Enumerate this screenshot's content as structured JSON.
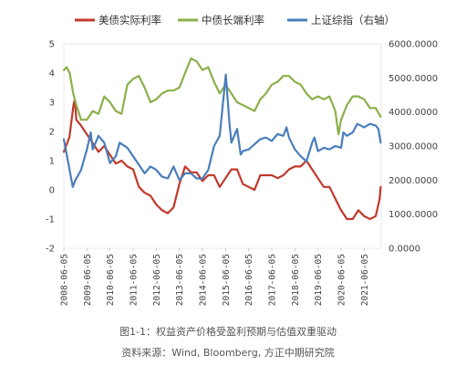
{
  "caption": {
    "title": "图1-1：权益资产价格受盈利预期与估值双重驱动",
    "source": "资料来源：Wind, Bloomberg, 方正中期研究院"
  },
  "chart_data": {
    "type": "line",
    "series": [
      {
        "name": "美债实际利率",
        "color": "#c0392b",
        "axis": "left",
        "values": [
          {
            "date": "2008-06-05",
            "v": 1.3
          },
          {
            "date": "2008-09-01",
            "v": 1.8
          },
          {
            "date": "2008-11-05",
            "v": 2.9
          },
          {
            "date": "2008-11-25",
            "v": 3.1
          },
          {
            "date": "2008-12-20",
            "v": 2.4
          },
          {
            "date": "2009-03-05",
            "v": 2.2
          },
          {
            "date": "2009-06-05",
            "v": 1.9
          },
          {
            "date": "2009-09-05",
            "v": 1.6
          },
          {
            "date": "2009-12-05",
            "v": 1.3
          },
          {
            "date": "2010-03-05",
            "v": 1.5
          },
          {
            "date": "2010-06-05",
            "v": 1.2
          },
          {
            "date": "2010-09-05",
            "v": 0.9
          },
          {
            "date": "2010-12-05",
            "v": 1.0
          },
          {
            "date": "2011-03-05",
            "v": 0.8
          },
          {
            "date": "2011-06-05",
            "v": 0.7
          },
          {
            "date": "2011-09-05",
            "v": 0.1
          },
          {
            "date": "2011-12-05",
            "v": -0.1
          },
          {
            "date": "2012-03-05",
            "v": -0.2
          },
          {
            "date": "2012-06-05",
            "v": -0.5
          },
          {
            "date": "2012-09-05",
            "v": -0.7
          },
          {
            "date": "2012-12-05",
            "v": -0.8
          },
          {
            "date": "2013-03-05",
            "v": -0.6
          },
          {
            "date": "2013-06-05",
            "v": 0.2
          },
          {
            "date": "2013-09-05",
            "v": 0.8
          },
          {
            "date": "2013-12-05",
            "v": 0.6
          },
          {
            "date": "2014-03-05",
            "v": 0.6
          },
          {
            "date": "2014-06-05",
            "v": 0.3
          },
          {
            "date": "2014-09-05",
            "v": 0.5
          },
          {
            "date": "2014-12-05",
            "v": 0.5
          },
          {
            "date": "2015-03-05",
            "v": 0.1
          },
          {
            "date": "2015-06-05",
            "v": 0.4
          },
          {
            "date": "2015-09-05",
            "v": 0.7
          },
          {
            "date": "2015-12-05",
            "v": 0.7
          },
          {
            "date": "2016-03-05",
            "v": 0.2
          },
          {
            "date": "2016-06-05",
            "v": 0.1
          },
          {
            "date": "2016-09-05",
            "v": 0.0
          },
          {
            "date": "2016-12-05",
            "v": 0.5
          },
          {
            "date": "2017-03-05",
            "v": 0.5
          },
          {
            "date": "2017-06-05",
            "v": 0.5
          },
          {
            "date": "2017-09-05",
            "v": 0.4
          },
          {
            "date": "2017-12-05",
            "v": 0.5
          },
          {
            "date": "2018-03-05",
            "v": 0.7
          },
          {
            "date": "2018-06-05",
            "v": 0.8
          },
          {
            "date": "2018-09-05",
            "v": 0.8
          },
          {
            "date": "2018-12-05",
            "v": 1.0
          },
          {
            "date": "2019-03-05",
            "v": 0.7
          },
          {
            "date": "2019-06-05",
            "v": 0.4
          },
          {
            "date": "2019-09-05",
            "v": 0.1
          },
          {
            "date": "2019-12-05",
            "v": 0.1
          },
          {
            "date": "2020-03-05",
            "v": -0.3
          },
          {
            "date": "2020-06-05",
            "v": -0.7
          },
          {
            "date": "2020-09-05",
            "v": -1.0
          },
          {
            "date": "2020-12-05",
            "v": -1.0
          },
          {
            "date": "2021-03-05",
            "v": -0.7
          },
          {
            "date": "2021-06-05",
            "v": -0.9
          },
          {
            "date": "2021-09-05",
            "v": -1.0
          },
          {
            "date": "2021-12-05",
            "v": -0.9
          },
          {
            "date": "2022-01-15",
            "v": -0.5
          },
          {
            "date": "2022-02-05",
            "v": -0.3
          },
          {
            "date": "2022-02-20",
            "v": 0.1
          }
        ]
      },
      {
        "name": "中债长端利率",
        "color": "#8ab04a",
        "axis": "left",
        "values": [
          {
            "date": "2008-06-05",
            "v": 4.1
          },
          {
            "date": "2008-07-20",
            "v": 4.2
          },
          {
            "date": "2008-09-05",
            "v": 4.0
          },
          {
            "date": "2008-11-01",
            "v": 3.3
          },
          {
            "date": "2008-12-20",
            "v": 2.9
          },
          {
            "date": "2009-03-05",
            "v": 2.4
          },
          {
            "date": "2009-06-05",
            "v": 2.4
          },
          {
            "date": "2009-09-05",
            "v": 2.7
          },
          {
            "date": "2009-12-05",
            "v": 2.6
          },
          {
            "date": "2010-03-05",
            "v": 3.2
          },
          {
            "date": "2010-06-05",
            "v": 3.0
          },
          {
            "date": "2010-09-05",
            "v": 2.7
          },
          {
            "date": "2010-12-05",
            "v": 2.6
          },
          {
            "date": "2011-03-05",
            "v": 3.6
          },
          {
            "date": "2011-06-05",
            "v": 3.8
          },
          {
            "date": "2011-09-05",
            "v": 3.9
          },
          {
            "date": "2011-12-05",
            "v": 3.5
          },
          {
            "date": "2012-03-05",
            "v": 3.0
          },
          {
            "date": "2012-06-05",
            "v": 3.1
          },
          {
            "date": "2012-09-05",
            "v": 3.3
          },
          {
            "date": "2012-12-05",
            "v": 3.4
          },
          {
            "date": "2013-03-05",
            "v": 3.4
          },
          {
            "date": "2013-06-05",
            "v": 3.5
          },
          {
            "date": "2013-09-05",
            "v": 4.0
          },
          {
            "date": "2013-12-05",
            "v": 4.5
          },
          {
            "date": "2014-03-05",
            "v": 4.4
          },
          {
            "date": "2014-06-05",
            "v": 4.1
          },
          {
            "date": "2014-09-05",
            "v": 4.2
          },
          {
            "date": "2014-12-05",
            "v": 3.7
          },
          {
            "date": "2015-03-05",
            "v": 3.3
          },
          {
            "date": "2015-06-05",
            "v": 3.6
          },
          {
            "date": "2015-09-05",
            "v": 3.3
          },
          {
            "date": "2015-12-05",
            "v": 3.0
          },
          {
            "date": "2016-03-05",
            "v": 2.9
          },
          {
            "date": "2016-06-05",
            "v": 2.8
          },
          {
            "date": "2016-09-05",
            "v": 2.7
          },
          {
            "date": "2016-12-05",
            "v": 3.1
          },
          {
            "date": "2017-03-05",
            "v": 3.3
          },
          {
            "date": "2017-06-05",
            "v": 3.6
          },
          {
            "date": "2017-09-05",
            "v": 3.7
          },
          {
            "date": "2017-12-05",
            "v": 3.9
          },
          {
            "date": "2018-03-05",
            "v": 3.9
          },
          {
            "date": "2018-06-05",
            "v": 3.7
          },
          {
            "date": "2018-09-05",
            "v": 3.6
          },
          {
            "date": "2018-12-05",
            "v": 3.3
          },
          {
            "date": "2019-03-05",
            "v": 3.1
          },
          {
            "date": "2019-06-05",
            "v": 3.2
          },
          {
            "date": "2019-09-05",
            "v": 3.1
          },
          {
            "date": "2019-12-05",
            "v": 3.2
          },
          {
            "date": "2020-03-05",
            "v": 2.7
          },
          {
            "date": "2020-04-25",
            "v": 1.9
          },
          {
            "date": "2020-06-05",
            "v": 2.4
          },
          {
            "date": "2020-09-05",
            "v": 2.9
          },
          {
            "date": "2020-12-05",
            "v": 3.2
          },
          {
            "date": "2021-03-05",
            "v": 3.2
          },
          {
            "date": "2021-06-05",
            "v": 3.1
          },
          {
            "date": "2021-09-05",
            "v": 2.8
          },
          {
            "date": "2021-12-05",
            "v": 2.8
          },
          {
            "date": "2022-02-20",
            "v": 2.5
          }
        ]
      },
      {
        "name": "上证综指（右轴）",
        "color": "#4a7ebb",
        "axis": "right",
        "values": [
          {
            "date": "2008-06-05",
            "v": 3200
          },
          {
            "date": "2008-08-05",
            "v": 2600
          },
          {
            "date": "2008-10-25",
            "v": 1800
          },
          {
            "date": "2008-12-05",
            "v": 2000
          },
          {
            "date": "2009-03-05",
            "v": 2300
          },
          {
            "date": "2009-06-05",
            "v": 2900
          },
          {
            "date": "2009-08-05",
            "v": 3400
          },
          {
            "date": "2009-09-05",
            "v": 2900
          },
          {
            "date": "2009-12-05",
            "v": 3300
          },
          {
            "date": "2010-03-05",
            "v": 3100
          },
          {
            "date": "2010-06-05",
            "v": 2500
          },
          {
            "date": "2010-09-05",
            "v": 2700
          },
          {
            "date": "2010-11-05",
            "v": 3100
          },
          {
            "date": "2011-03-05",
            "v": 2950
          },
          {
            "date": "2011-06-05",
            "v": 2700
          },
          {
            "date": "2011-09-05",
            "v": 2450
          },
          {
            "date": "2011-12-05",
            "v": 2200
          },
          {
            "date": "2012-03-05",
            "v": 2400
          },
          {
            "date": "2012-06-05",
            "v": 2300
          },
          {
            "date": "2012-09-05",
            "v": 2100
          },
          {
            "date": "2012-12-05",
            "v": 2050
          },
          {
            "date": "2013-03-05",
            "v": 2400
          },
          {
            "date": "2013-06-05",
            "v": 2000
          },
          {
            "date": "2013-09-05",
            "v": 2200
          },
          {
            "date": "2013-12-05",
            "v": 2200
          },
          {
            "date": "2014-03-05",
            "v": 2050
          },
          {
            "date": "2014-06-05",
            "v": 2050
          },
          {
            "date": "2014-09-05",
            "v": 2300
          },
          {
            "date": "2014-12-05",
            "v": 3000
          },
          {
            "date": "2015-03-05",
            "v": 3300
          },
          {
            "date": "2015-06-10",
            "v": 5100
          },
          {
            "date": "2015-08-05",
            "v": 3700
          },
          {
            "date": "2015-09-05",
            "v": 3100
          },
          {
            "date": "2015-12-05",
            "v": 3500
          },
          {
            "date": "2016-01-30",
            "v": 2750
          },
          {
            "date": "2016-03-05",
            "v": 2850
          },
          {
            "date": "2016-06-05",
            "v": 2900
          },
          {
            "date": "2016-09-05",
            "v": 3050
          },
          {
            "date": "2016-12-05",
            "v": 3200
          },
          {
            "date": "2017-03-05",
            "v": 3250
          },
          {
            "date": "2017-06-05",
            "v": 3150
          },
          {
            "date": "2017-09-05",
            "v": 3350
          },
          {
            "date": "2017-12-05",
            "v": 3300
          },
          {
            "date": "2018-01-25",
            "v": 3550
          },
          {
            "date": "2018-03-05",
            "v": 3250
          },
          {
            "date": "2018-06-05",
            "v": 2900
          },
          {
            "date": "2018-09-05",
            "v": 2700
          },
          {
            "date": "2018-12-05",
            "v": 2550
          },
          {
            "date": "2019-03-05",
            "v": 3100
          },
          {
            "date": "2019-04-10",
            "v": 3250
          },
          {
            "date": "2019-06-05",
            "v": 2850
          },
          {
            "date": "2019-09-05",
            "v": 2950
          },
          {
            "date": "2019-12-05",
            "v": 2900
          },
          {
            "date": "2020-03-05",
            "v": 3000
          },
          {
            "date": "2020-06-05",
            "v": 2950
          },
          {
            "date": "2020-07-10",
            "v": 3400
          },
          {
            "date": "2020-09-05",
            "v": 3300
          },
          {
            "date": "2020-12-05",
            "v": 3400
          },
          {
            "date": "2021-02-15",
            "v": 3650
          },
          {
            "date": "2021-06-05",
            "v": 3550
          },
          {
            "date": "2021-09-05",
            "v": 3650
          },
          {
            "date": "2021-12-05",
            "v": 3600
          },
          {
            "date": "2022-01-15",
            "v": 3500
          },
          {
            "date": "2022-02-20",
            "v": 3100
          }
        ]
      }
    ],
    "y_left": {
      "min": -2,
      "max": 5,
      "ticks": [
        "5",
        "4",
        "3",
        "2",
        "1",
        "0",
        "-1",
        "-2"
      ]
    },
    "y_right": {
      "min": 0,
      "max": 6000,
      "ticks": [
        "6000.0000",
        "5000.0000",
        "4000.0000",
        "3000.0000",
        "2000.0000",
        "1000.0000",
        "0.0000"
      ]
    },
    "x_range": [
      "2008-06-05",
      "2022-03-01"
    ],
    "x_ticks": [
      "2008-06-05",
      "2009-06-05",
      "2010-06-05",
      "2011-06-05",
      "2012-06-05",
      "2013-06-05",
      "2014-06-05",
      "2015-06-05",
      "2016-06-05",
      "2017-06-05",
      "2018-06-05",
      "2019-06-05",
      "2020-06-05",
      "2021-06-05"
    ],
    "legend_position": "top",
    "grid": false
  }
}
